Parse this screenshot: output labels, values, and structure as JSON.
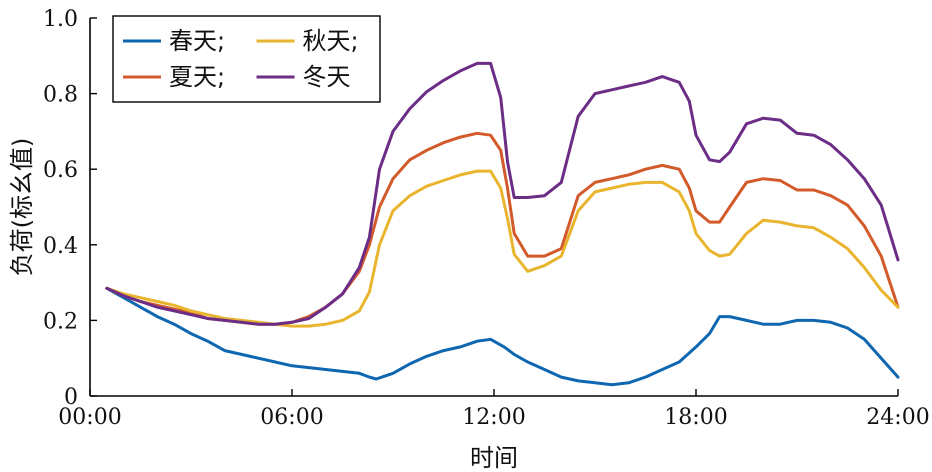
{
  "chart_data": {
    "type": "line",
    "title": "",
    "xlabel": "时间",
    "ylabel": "负荷(标幺值)",
    "xlim": [
      0,
      24
    ],
    "ylim": [
      0,
      1.0
    ],
    "x_ticks": [
      0,
      6,
      12,
      18,
      24
    ],
    "x_tick_labels": [
      "00:00",
      "06:00",
      "12:00",
      "18:00",
      "24:00"
    ],
    "y_ticks": [
      0,
      0.2,
      0.4,
      0.6,
      0.8,
      1.0
    ],
    "y_tick_labels": [
      "0",
      "0.2",
      "0.4",
      "0.6",
      "0.8",
      "1.0"
    ],
    "grid": false,
    "legend": {
      "placement": "top-left",
      "columns": 2,
      "entries": [
        {
          "series": 0,
          "text": "春天;"
        },
        {
          "series": 2,
          "text": "秋天;"
        },
        {
          "series": 1,
          "text": "夏天;"
        },
        {
          "series": 3,
          "text": "冬天"
        }
      ]
    },
    "series": [
      {
        "color": "#0E67B0",
        "points": [
          [
            0.5,
            0.285
          ],
          [
            1,
            0.26
          ],
          [
            1.5,
            0.235
          ],
          [
            2,
            0.21
          ],
          [
            2.5,
            0.19
          ],
          [
            3,
            0.165
          ],
          [
            3.5,
            0.145
          ],
          [
            4,
            0.12
          ],
          [
            4.5,
            0.11
          ],
          [
            5,
            0.1
          ],
          [
            5.5,
            0.09
          ],
          [
            6,
            0.08
          ],
          [
            6.5,
            0.075
          ],
          [
            7,
            0.07
          ],
          [
            7.5,
            0.065
          ],
          [
            8,
            0.06
          ],
          [
            8.3,
            0.05
          ],
          [
            8.5,
            0.045
          ],
          [
            9,
            0.06
          ],
          [
            9.5,
            0.085
          ],
          [
            10,
            0.105
          ],
          [
            10.5,
            0.12
          ],
          [
            11,
            0.13
          ],
          [
            11.5,
            0.145
          ],
          [
            11.9,
            0.15
          ],
          [
            12.3,
            0.13
          ],
          [
            12.6,
            0.11
          ],
          [
            13,
            0.09
          ],
          [
            13.5,
            0.07
          ],
          [
            14,
            0.05
          ],
          [
            14.5,
            0.04
          ],
          [
            15,
            0.035
          ],
          [
            15.5,
            0.03
          ],
          [
            16,
            0.035
          ],
          [
            16.5,
            0.05
          ],
          [
            17,
            0.07
          ],
          [
            17.5,
            0.09
          ],
          [
            18,
            0.13
          ],
          [
            18.4,
            0.165
          ],
          [
            18.7,
            0.21
          ],
          [
            19,
            0.21
          ],
          [
            19.5,
            0.2
          ],
          [
            20,
            0.19
          ],
          [
            20.5,
            0.19
          ],
          [
            21,
            0.2
          ],
          [
            21.5,
            0.2
          ],
          [
            22,
            0.195
          ],
          [
            22.5,
            0.18
          ],
          [
            23,
            0.15
          ],
          [
            23.5,
            0.1
          ],
          [
            24,
            0.05
          ]
        ]
      },
      {
        "color": "#D35A2A",
        "points": [
          [
            0.5,
            0.285
          ],
          [
            1,
            0.265
          ],
          [
            1.5,
            0.25
          ],
          [
            2,
            0.24
          ],
          [
            2.5,
            0.23
          ],
          [
            3,
            0.22
          ],
          [
            3.5,
            0.205
          ],
          [
            4,
            0.2
          ],
          [
            4.5,
            0.195
          ],
          [
            5,
            0.19
          ],
          [
            5.5,
            0.19
          ],
          [
            6,
            0.195
          ],
          [
            6.5,
            0.21
          ],
          [
            7,
            0.235
          ],
          [
            7.5,
            0.27
          ],
          [
            8,
            0.33
          ],
          [
            8.3,
            0.4
          ],
          [
            8.6,
            0.5
          ],
          [
            9,
            0.575
          ],
          [
            9.5,
            0.625
          ],
          [
            10,
            0.65
          ],
          [
            10.5,
            0.67
          ],
          [
            11,
            0.685
          ],
          [
            11.5,
            0.695
          ],
          [
            11.9,
            0.69
          ],
          [
            12.2,
            0.65
          ],
          [
            12.4,
            0.55
          ],
          [
            12.6,
            0.43
          ],
          [
            13,
            0.37
          ],
          [
            13.5,
            0.37
          ],
          [
            14,
            0.39
          ],
          [
            14.5,
            0.53
          ],
          [
            15,
            0.565
          ],
          [
            15.5,
            0.575
          ],
          [
            16,
            0.585
          ],
          [
            16.5,
            0.6
          ],
          [
            17,
            0.61
          ],
          [
            17.5,
            0.6
          ],
          [
            17.8,
            0.55
          ],
          [
            18,
            0.49
          ],
          [
            18.4,
            0.46
          ],
          [
            18.7,
            0.46
          ],
          [
            19,
            0.5
          ],
          [
            19.5,
            0.565
          ],
          [
            20,
            0.575
          ],
          [
            20.5,
            0.57
          ],
          [
            21,
            0.545
          ],
          [
            21.5,
            0.545
          ],
          [
            22,
            0.53
          ],
          [
            22.5,
            0.505
          ],
          [
            23,
            0.45
          ],
          [
            23.5,
            0.37
          ],
          [
            24,
            0.235
          ]
        ]
      },
      {
        "color": "#E9B52E",
        "points": [
          [
            0.5,
            0.285
          ],
          [
            1,
            0.27
          ],
          [
            1.5,
            0.26
          ],
          [
            2,
            0.25
          ],
          [
            2.5,
            0.24
          ],
          [
            3,
            0.225
          ],
          [
            3.5,
            0.215
          ],
          [
            4,
            0.205
          ],
          [
            4.5,
            0.2
          ],
          [
            5,
            0.195
          ],
          [
            5.5,
            0.19
          ],
          [
            6,
            0.185
          ],
          [
            6.5,
            0.185
          ],
          [
            7,
            0.19
          ],
          [
            7.5,
            0.2
          ],
          [
            8,
            0.225
          ],
          [
            8.3,
            0.275
          ],
          [
            8.6,
            0.4
          ],
          [
            9,
            0.49
          ],
          [
            9.5,
            0.53
          ],
          [
            10,
            0.555
          ],
          [
            10.5,
            0.57
          ],
          [
            11,
            0.585
          ],
          [
            11.5,
            0.595
          ],
          [
            11.9,
            0.595
          ],
          [
            12.2,
            0.55
          ],
          [
            12.4,
            0.47
          ],
          [
            12.6,
            0.375
          ],
          [
            13,
            0.33
          ],
          [
            13.5,
            0.345
          ],
          [
            14,
            0.37
          ],
          [
            14.5,
            0.49
          ],
          [
            15,
            0.54
          ],
          [
            15.5,
            0.55
          ],
          [
            16,
            0.56
          ],
          [
            16.5,
            0.565
          ],
          [
            17,
            0.565
          ],
          [
            17.5,
            0.54
          ],
          [
            17.8,
            0.49
          ],
          [
            18,
            0.43
          ],
          [
            18.4,
            0.385
          ],
          [
            18.7,
            0.37
          ],
          [
            19,
            0.375
          ],
          [
            19.5,
            0.43
          ],
          [
            20,
            0.465
          ],
          [
            20.5,
            0.46
          ],
          [
            21,
            0.45
          ],
          [
            21.5,
            0.445
          ],
          [
            22,
            0.42
          ],
          [
            22.5,
            0.39
          ],
          [
            23,
            0.34
          ],
          [
            23.5,
            0.28
          ],
          [
            24,
            0.235
          ]
        ]
      },
      {
        "color": "#6C2D86",
        "points": [
          [
            0.5,
            0.285
          ],
          [
            1,
            0.265
          ],
          [
            1.5,
            0.25
          ],
          [
            2,
            0.235
          ],
          [
            2.5,
            0.225
          ],
          [
            3,
            0.215
          ],
          [
            3.5,
            0.205
          ],
          [
            4,
            0.2
          ],
          [
            4.5,
            0.195
          ],
          [
            5,
            0.19
          ],
          [
            5.5,
            0.19
          ],
          [
            6,
            0.195
          ],
          [
            6.5,
            0.205
          ],
          [
            7,
            0.235
          ],
          [
            7.5,
            0.27
          ],
          [
            8,
            0.34
          ],
          [
            8.3,
            0.42
          ],
          [
            8.6,
            0.6
          ],
          [
            9,
            0.7
          ],
          [
            9.5,
            0.76
          ],
          [
            10,
            0.805
          ],
          [
            10.5,
            0.835
          ],
          [
            11,
            0.86
          ],
          [
            11.5,
            0.88
          ],
          [
            11.9,
            0.88
          ],
          [
            12.2,
            0.79
          ],
          [
            12.4,
            0.62
          ],
          [
            12.6,
            0.525
          ],
          [
            13,
            0.525
          ],
          [
            13.5,
            0.53
          ],
          [
            14,
            0.565
          ],
          [
            14.5,
            0.74
          ],
          [
            15,
            0.8
          ],
          [
            15.5,
            0.81
          ],
          [
            16,
            0.82
          ],
          [
            16.5,
            0.83
          ],
          [
            17,
            0.845
          ],
          [
            17.5,
            0.83
          ],
          [
            17.8,
            0.78
          ],
          [
            18,
            0.69
          ],
          [
            18.4,
            0.625
          ],
          [
            18.7,
            0.62
          ],
          [
            19,
            0.645
          ],
          [
            19.5,
            0.72
          ],
          [
            20,
            0.735
          ],
          [
            20.5,
            0.73
          ],
          [
            21,
            0.695
          ],
          [
            21.5,
            0.69
          ],
          [
            22,
            0.665
          ],
          [
            22.5,
            0.625
          ],
          [
            23,
            0.575
          ],
          [
            23.5,
            0.505
          ],
          [
            24,
            0.36
          ]
        ]
      }
    ]
  }
}
